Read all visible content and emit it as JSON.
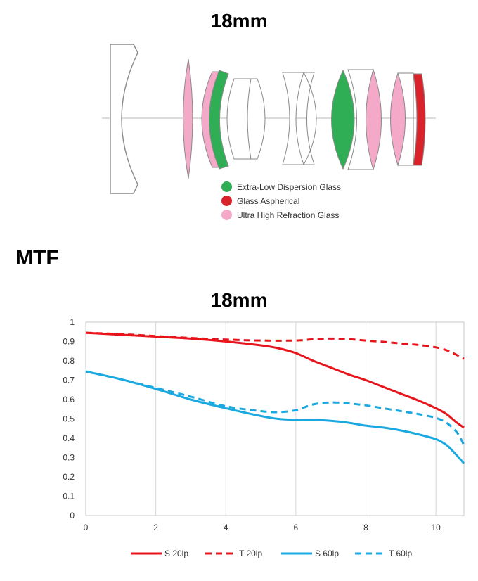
{
  "diagram": {
    "title": "18mm",
    "legend": [
      {
        "label": "Extra-Low Dispersion Glass",
        "color": "#2fae55"
      },
      {
        "label": "Glass Aspherical",
        "color": "#d9222a"
      },
      {
        "label": "Ultra High Refraction Glass",
        "color": "#f4a9c8"
      }
    ]
  },
  "mtf_heading": "MTF",
  "chart_data": {
    "type": "line",
    "title": "18mm",
    "xlim": [
      0,
      10.8
    ],
    "ylim": [
      0,
      1
    ],
    "xticks": [
      "0",
      "2",
      "4",
      "6",
      "8",
      "10"
    ],
    "yticks": [
      "0",
      "0.1",
      "0.2",
      "0.3",
      "0.4",
      "0.5",
      "0.6",
      "0.7",
      "0.8",
      "0.9",
      "1"
    ],
    "grid": "vertical",
    "legend_position": "bottom",
    "series": [
      {
        "name": "S 20lp",
        "color": "#e8141b",
        "dash": "solid",
        "x": [
          0,
          1,
          2,
          3,
          4,
          5,
          5.5,
          6,
          6.5,
          7,
          7.5,
          8,
          8.5,
          9,
          9.5,
          10,
          10.3,
          10.6,
          10.8
        ],
        "y": [
          0.945,
          0.935,
          0.925,
          0.915,
          0.9,
          0.88,
          0.865,
          0.84,
          0.8,
          0.765,
          0.73,
          0.7,
          0.665,
          0.63,
          0.595,
          0.555,
          0.525,
          0.48,
          0.455
        ]
      },
      {
        "name": "T 20lp",
        "color": "#e8141b",
        "dash": "dashed",
        "x": [
          0,
          1,
          2,
          3,
          4,
          5,
          6,
          6.5,
          7,
          7.5,
          8,
          8.5,
          9,
          9.5,
          10,
          10.3,
          10.6,
          10.8
        ],
        "y": [
          0.945,
          0.938,
          0.928,
          0.918,
          0.91,
          0.905,
          0.905,
          0.912,
          0.915,
          0.912,
          0.905,
          0.898,
          0.89,
          0.882,
          0.87,
          0.855,
          0.83,
          0.81
        ]
      },
      {
        "name": "S 60lp",
        "color": "#1aa8e0",
        "dash": "solid",
        "x": [
          0,
          1,
          2,
          3,
          4,
          5,
          5.5,
          6,
          6.5,
          7,
          7.5,
          8,
          8.5,
          9,
          9.5,
          10,
          10.3,
          10.5,
          10.8
        ],
        "y": [
          0.745,
          0.705,
          0.655,
          0.6,
          0.555,
          0.515,
          0.5,
          0.495,
          0.495,
          0.49,
          0.48,
          0.465,
          0.455,
          0.44,
          0.42,
          0.395,
          0.365,
          0.33,
          0.27
        ]
      },
      {
        "name": "T 60lp",
        "color": "#1aa8e0",
        "dash": "dashed",
        "x": [
          0,
          1,
          2,
          3,
          4,
          5,
          5.5,
          6,
          6.5,
          7,
          7.5,
          8,
          8.5,
          9,
          9.5,
          10,
          10.3,
          10.6,
          10.8
        ],
        "y": [
          0.745,
          0.705,
          0.66,
          0.615,
          0.565,
          0.54,
          0.535,
          0.545,
          0.575,
          0.585,
          0.58,
          0.57,
          0.555,
          0.54,
          0.525,
          0.505,
          0.48,
          0.43,
          0.365
        ]
      }
    ]
  }
}
